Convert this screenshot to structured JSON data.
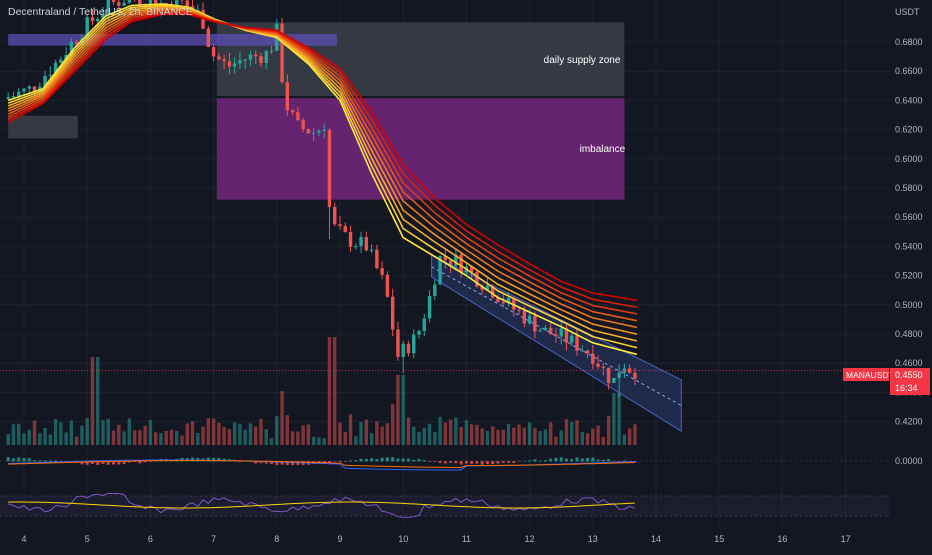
{
  "header": {
    "symbol_title": "Decentraland / TetherUS, 2h, BINANCE"
  },
  "price_axis": {
    "unit": "USDT",
    "ticks": [
      "0.6800",
      "0.6600",
      "0.6400",
      "0.6200",
      "0.6000",
      "0.5800",
      "0.5600",
      "0.5400",
      "0.5200",
      "0.5000",
      "0.4800",
      "0.4600",
      "0.4400",
      "0.4200"
    ],
    "macd_tick": "0.0000"
  },
  "badge": {
    "symbol": "MANAUSDT",
    "price": "0.4550",
    "countdown": "16:34"
  },
  "zones": {
    "supply_label": "daily supply zone",
    "imbalance_label": "imbalance"
  },
  "time_axis": {
    "labels": [
      "4",
      "5",
      "6",
      "7",
      "8",
      "9",
      "10",
      "11",
      "12",
      "13",
      "14",
      "15",
      "16",
      "17"
    ]
  },
  "colors": {
    "background": "#131722",
    "bull_candle": "#26a69a",
    "bear_candle": "#ef5350",
    "supply_zone": "#3a3d48",
    "imbalance_zone": "#6a2474",
    "channel": "#2a3a6e",
    "badge": "#f23645",
    "ribbon_fast": "#ffeb3b",
    "ribbon_slow": "#d50000"
  },
  "chart_data": {
    "type": "candlestick",
    "timeframe": "2h",
    "ylim": [
      0.41,
      0.7
    ],
    "ribbon_start": [
      {
        "day": 3.75,
        "price": 0.64
      },
      {
        "day": 4.3,
        "price": 0.648
      },
      {
        "day": 4.8,
        "price": 0.676
      },
      {
        "day": 5.3,
        "price": 0.698
      },
      {
        "day": 5.7,
        "price": 0.705
      },
      {
        "day": 6.2,
        "price": 0.706
      },
      {
        "day": 6.6,
        "price": 0.704
      },
      {
        "day": 7.0,
        "price": 0.696
      },
      {
        "day": 7.5,
        "price": 0.688
      },
      {
        "day": 8.0,
        "price": 0.683
      },
      {
        "day": 8.5,
        "price": 0.665
      },
      {
        "day": 9.0,
        "price": 0.64
      },
      {
        "day": 9.5,
        "price": 0.59
      },
      {
        "day": 10.0,
        "price": 0.546
      },
      {
        "day": 10.5,
        "price": 0.533
      },
      {
        "day": 11.0,
        "price": 0.52
      },
      {
        "day": 11.5,
        "price": 0.505
      },
      {
        "day": 12.0,
        "price": 0.495
      },
      {
        "day": 12.5,
        "price": 0.485
      },
      {
        "day": 13.0,
        "price": 0.474
      },
      {
        "day": 13.7,
        "price": 0.466
      }
    ],
    "ribbon_end": [
      {
        "day": 3.75,
        "price": 0.625
      },
      {
        "day": 4.3,
        "price": 0.638
      },
      {
        "day": 4.8,
        "price": 0.66
      },
      {
        "day": 5.3,
        "price": 0.682
      },
      {
        "day": 5.7,
        "price": 0.694
      },
      {
        "day": 6.2,
        "price": 0.699
      },
      {
        "day": 6.6,
        "price": 0.699
      },
      {
        "day": 7.0,
        "price": 0.694
      },
      {
        "day": 7.5,
        "price": 0.69
      },
      {
        "day": 8.0,
        "price": 0.688
      },
      {
        "day": 8.5,
        "price": 0.676
      },
      {
        "day": 9.0,
        "price": 0.662
      },
      {
        "day": 9.5,
        "price": 0.632
      },
      {
        "day": 10.0,
        "price": 0.596
      },
      {
        "day": 10.5,
        "price": 0.573
      },
      {
        "day": 11.0,
        "price": 0.555
      },
      {
        "day": 11.5,
        "price": 0.541
      },
      {
        "day": 12.0,
        "price": 0.528
      },
      {
        "day": 12.5,
        "price": 0.516
      },
      {
        "day": 13.0,
        "price": 0.508
      },
      {
        "day": 13.7,
        "price": 0.503
      }
    ],
    "ribbon_lines": 9,
    "price_path": [
      {
        "day": 3.75,
        "price": 0.641
      },
      {
        "day": 4.2,
        "price": 0.648
      },
      {
        "day": 4.6,
        "price": 0.666
      },
      {
        "day": 5.0,
        "price": 0.688
      },
      {
        "day": 5.4,
        "price": 0.705
      },
      {
        "day": 5.8,
        "price": 0.712
      },
      {
        "day": 6.2,
        "price": 0.706
      },
      {
        "day": 6.6,
        "price": 0.707
      },
      {
        "day": 6.9,
        "price": 0.697
      },
      {
        "day": 7.05,
        "price": 0.672
      },
      {
        "day": 7.3,
        "price": 0.663
      },
      {
        "day": 7.6,
        "price": 0.669
      },
      {
        "day": 7.95,
        "price": 0.672
      },
      {
        "day": 8.1,
        "price": 0.689
      },
      {
        "day": 8.2,
        "price": 0.64
      },
      {
        "day": 8.4,
        "price": 0.622
      },
      {
        "day": 8.7,
        "price": 0.618
      },
      {
        "day": 8.85,
        "price": 0.625
      },
      {
        "day": 8.93,
        "price": 0.555
      },
      {
        "day": 9.2,
        "price": 0.545
      },
      {
        "day": 9.5,
        "price": 0.54
      },
      {
        "day": 9.8,
        "price": 0.512
      },
      {
        "day": 10.0,
        "price": 0.465
      },
      {
        "day": 10.3,
        "price": 0.478
      },
      {
        "day": 10.5,
        "price": 0.505
      },
      {
        "day": 10.65,
        "price": 0.532
      },
      {
        "day": 10.95,
        "price": 0.53
      },
      {
        "day": 11.2,
        "price": 0.52
      },
      {
        "day": 11.5,
        "price": 0.51
      },
      {
        "day": 11.8,
        "price": 0.498
      },
      {
        "day": 12.0,
        "price": 0.492
      },
      {
        "day": 12.3,
        "price": 0.482
      },
      {
        "day": 12.6,
        "price": 0.478
      },
      {
        "day": 12.9,
        "price": 0.471
      },
      {
        "day": 13.1,
        "price": 0.465
      },
      {
        "day": 13.3,
        "price": 0.452
      },
      {
        "day": 13.42,
        "price": 0.448
      },
      {
        "day": 13.55,
        "price": 0.461
      },
      {
        "day": 13.7,
        "price": 0.455
      }
    ],
    "spikes": [
      {
        "day": 8.85,
        "low": 0.545
      },
      {
        "day": 9.97,
        "low": 0.453
      },
      {
        "day": 13.4,
        "low": 0.437
      }
    ],
    "supply_zone": {
      "day_from": 7.05,
      "day_to": 13.5,
      "top": 0.6935,
      "bottom": 0.643
    },
    "imbalance_zone": {
      "day_from": 7.05,
      "day_to": 13.5,
      "top": 0.6415,
      "bottom": 0.572
    },
    "left_zone_top": {
      "day_from": 3.75,
      "day_to": 8.95,
      "top": 0.6855,
      "bottom": 0.6775
    },
    "left_zone_bottom": {
      "day_from": 3.75,
      "day_to": 4.85,
      "top": 0.6295,
      "bottom": 0.614
    },
    "channel": [
      {
        "day": 10.45,
        "price": 0.534
      },
      {
        "day": 14.4,
        "price": 0.4485
      },
      {
        "day": 14.4,
        "price": 0.4135
      },
      {
        "day": 10.45,
        "price": 0.519
      }
    ],
    "channel_mid": [
      {
        "day": 10.45,
        "price": 0.526
      },
      {
        "day": 14.4,
        "price": 0.431
      }
    ],
    "current_price": 0.455
  }
}
